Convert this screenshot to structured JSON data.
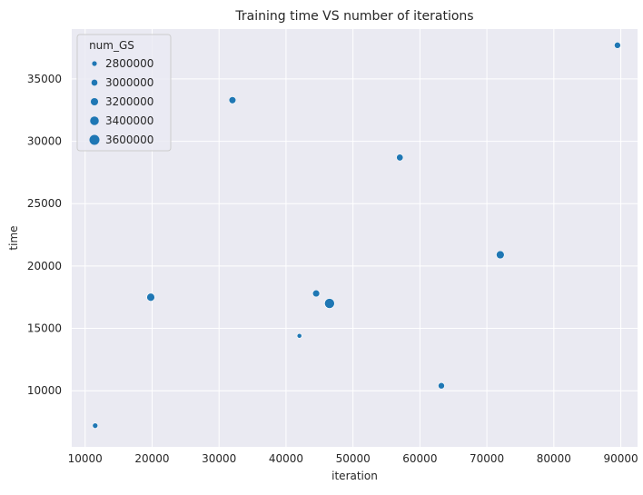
{
  "chart_data": {
    "type": "scatter",
    "title": "Training time VS number of iterations",
    "xlabel": "iteration",
    "ylabel": "time",
    "xlim": [
      8000,
      92500
    ],
    "ylim": [
      5500,
      39000
    ],
    "xticks": [
      10000,
      20000,
      30000,
      40000,
      50000,
      60000,
      70000,
      80000,
      90000
    ],
    "yticks": [
      10000,
      15000,
      20000,
      25000,
      30000,
      35000
    ],
    "grid": true,
    "legend": {
      "title": "num_GS",
      "placement": "top-left",
      "entries": [
        "2800000",
        "3000000",
        "3200000",
        "3400000",
        "3600000"
      ],
      "values": [
        2800000,
        3000000,
        3200000,
        3400000,
        3600000
      ]
    },
    "size_range": [
      2800000,
      3600000
    ],
    "color": "#1f77b4",
    "points": [
      {
        "x": 11500,
        "y": 7200,
        "size": 2900000
      },
      {
        "x": 19800,
        "y": 17500,
        "size": 3300000
      },
      {
        "x": 32000,
        "y": 33300,
        "size": 3150000
      },
      {
        "x": 42000,
        "y": 14400,
        "size": 2800000
      },
      {
        "x": 44500,
        "y": 17800,
        "size": 3150000
      },
      {
        "x": 46500,
        "y": 17000,
        "size": 3600000
      },
      {
        "x": 57000,
        "y": 28700,
        "size": 3100000
      },
      {
        "x": 63200,
        "y": 10400,
        "size": 3050000
      },
      {
        "x": 72000,
        "y": 20900,
        "size": 3300000
      },
      {
        "x": 89500,
        "y": 37700,
        "size": 3050000
      }
    ]
  }
}
